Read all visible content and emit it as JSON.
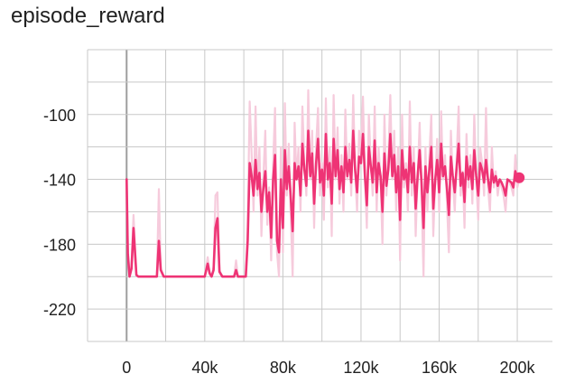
{
  "title": "episode_reward",
  "colors": {
    "raw": "#f6cbdc",
    "smoothed": "#ee3475",
    "grid": "#c8c8c8",
    "zero_line": "#9e9e9e",
    "tick_text": "#212121"
  },
  "chart_data": {
    "type": "line",
    "title": "episode_reward",
    "xlabel": "",
    "ylabel": "",
    "xlim": [
      -20000,
      218000
    ],
    "ylim": [
      -240,
      -60
    ],
    "x_ticks": [
      0,
      40000,
      80000,
      120000,
      160000,
      200000
    ],
    "x_tick_labels": [
      "0",
      "40k",
      "80k",
      "120k",
      "160k",
      "200k"
    ],
    "y_ticks": [
      -100,
      -140,
      -180,
      -220
    ],
    "y_tick_labels": [
      "-100",
      "-140",
      "-180",
      "-220"
    ],
    "grid": true,
    "series": [
      {
        "style": "raw",
        "x": [
          0,
          600,
          1500,
          2500,
          3500,
          5000,
          6000,
          7000,
          8500,
          10000,
          12000,
          14000,
          15500,
          16500,
          17500,
          19000,
          21000,
          25000,
          30000,
          35000,
          40000,
          41500,
          42500,
          43500,
          44500,
          45500,
          46500,
          47500,
          49000,
          51000,
          53000,
          55000,
          56000,
          57000,
          58000,
          59000,
          60000,
          61000,
          62000,
          63000,
          64000,
          65000,
          66000,
          67000,
          68000,
          69000,
          70000,
          71000,
          72000,
          73000,
          74000,
          75000,
          76000,
          77000,
          78000,
          79000,
          80000,
          81000,
          82000,
          83000,
          84000,
          85000,
          86000,
          87000,
          88000,
          89000,
          90000,
          91000,
          92000,
          93000,
          94000,
          95000,
          96000,
          97000,
          98000,
          99000,
          100000,
          101000,
          102000,
          103000,
          104000,
          105000,
          106000,
          107000,
          108000,
          109000,
          110000,
          111000,
          112000,
          113000,
          114000,
          115000,
          116000,
          117000,
          118000,
          119000,
          120000,
          121000,
          122000,
          123000,
          124000,
          125000,
          126000,
          127000,
          128000,
          129000,
          130000,
          131000,
          132000,
          133000,
          134000,
          135000,
          136000,
          137000,
          138000,
          139000,
          140000,
          141000,
          142000,
          143000,
          144000,
          145000,
          146000,
          147000,
          148000,
          149000,
          150000,
          151000,
          152000,
          153000,
          154000,
          155000,
          156000,
          157000,
          158000,
          159000,
          160000,
          161000,
          162000,
          163000,
          164000,
          165000,
          166000,
          167000,
          168000,
          169000,
          170000,
          171000,
          172000,
          173000,
          174000,
          175000,
          176000,
          177000,
          178000,
          179000,
          180000,
          181000,
          182000,
          183000,
          184000,
          185000,
          186000,
          187000,
          188000,
          189000,
          190000,
          191000,
          192000,
          193000,
          194000,
          195000,
          196000,
          197000,
          198000,
          199000,
          200000,
          201000
        ],
        "y": [
          -140,
          -182,
          -200,
          -193,
          -162,
          -199,
          -200,
          -200,
          -200,
          -200,
          -200,
          -200,
          -200,
          -146,
          -195,
          -200,
          -200,
          -200,
          -200,
          -200,
          -200,
          -188,
          -197,
          -200,
          -194,
          -150,
          -148,
          -196,
          -200,
          -200,
          -200,
          -200,
          -190,
          -200,
          -200,
          -200,
          -200,
          -200,
          -170,
          -92,
          -125,
          -160,
          -95,
          -150,
          -120,
          -175,
          -140,
          -110,
          -168,
          -145,
          -190,
          -130,
          -96,
          -185,
          -200,
          -120,
          -185,
          -93,
          -150,
          -118,
          -160,
          -200,
          -105,
          -140,
          -120,
          -160,
          -95,
          -130,
          -150,
          -85,
          -140,
          -110,
          -170,
          -120,
          -96,
          -150,
          -130,
          -165,
          -90,
          -145,
          -120,
          -175,
          -88,
          -140,
          -108,
          -155,
          -125,
          -160,
          -97,
          -140,
          -118,
          -150,
          -88,
          -135,
          -160,
          -110,
          -125,
          -89,
          -140,
          -170,
          -100,
          -130,
          -150,
          -95,
          -160,
          -120,
          -140,
          -180,
          -100,
          -150,
          -128,
          -88,
          -140,
          -110,
          -160,
          -120,
          -190,
          -100,
          -145,
          -130,
          -160,
          -92,
          -150,
          -120,
          -175,
          -138,
          -105,
          -150,
          -200,
          -120,
          -160,
          -125,
          -100,
          -175,
          -140,
          -115,
          -160,
          -98,
          -140,
          -125,
          -155,
          -185,
          -110,
          -140,
          -160,
          -125,
          -95,
          -150,
          -135,
          -170,
          -112,
          -145,
          -125,
          -155,
          -100,
          -140,
          -165,
          -120,
          -130,
          -150,
          -96,
          -145,
          -160,
          -120,
          -145,
          -135,
          -150,
          -140,
          -145,
          -150,
          -160,
          -140,
          -142,
          -145,
          -150,
          -125,
          -145,
          -140
        ]
      },
      {
        "style": "smoothed",
        "x": [
          0,
          600,
          1500,
          2500,
          3500,
          5000,
          6000,
          7000,
          8500,
          10000,
          12000,
          14000,
          15500,
          16500,
          17500,
          19000,
          21000,
          25000,
          30000,
          35000,
          40000,
          41500,
          42500,
          43500,
          44500,
          45500,
          46500,
          47500,
          49000,
          51000,
          53000,
          55000,
          56000,
          57000,
          58000,
          59000,
          60000,
          61000,
          62000,
          63000,
          64000,
          65000,
          66000,
          67000,
          68000,
          69000,
          70000,
          71000,
          72000,
          73000,
          74000,
          75000,
          76000,
          77000,
          78000,
          79000,
          80000,
          81000,
          82000,
          83000,
          84000,
          85000,
          86000,
          87000,
          88000,
          89000,
          90000,
          91000,
          92000,
          93000,
          94000,
          95000,
          96000,
          97000,
          98000,
          99000,
          100000,
          101000,
          102000,
          103000,
          104000,
          105000,
          106000,
          107000,
          108000,
          109000,
          110000,
          111000,
          112000,
          113000,
          114000,
          115000,
          116000,
          117000,
          118000,
          119000,
          120000,
          121000,
          122000,
          123000,
          124000,
          125000,
          126000,
          127000,
          128000,
          129000,
          130000,
          131000,
          132000,
          133000,
          134000,
          135000,
          136000,
          137000,
          138000,
          139000,
          140000,
          141000,
          142000,
          143000,
          144000,
          145000,
          146000,
          147000,
          148000,
          149000,
          150000,
          151000,
          152000,
          153000,
          154000,
          155000,
          156000,
          157000,
          158000,
          159000,
          160000,
          161000,
          162000,
          163000,
          164000,
          165000,
          166000,
          167000,
          168000,
          169000,
          170000,
          171000,
          172000,
          173000,
          174000,
          175000,
          176000,
          177000,
          178000,
          179000,
          180000,
          181000,
          182000,
          183000,
          184000,
          185000,
          186000,
          187000,
          188000,
          189000,
          190000,
          191000,
          192000,
          193000,
          194000,
          195000,
          196000,
          197000,
          198000,
          199000,
          200000,
          201000
        ],
        "y": [
          -140,
          -186,
          -200,
          -195,
          -170,
          -199,
          -200,
          -200,
          -200,
          -200,
          -200,
          -200,
          -200,
          -178,
          -196,
          -200,
          -200,
          -200,
          -200,
          -200,
          -200,
          -192,
          -198,
          -200,
          -196,
          -170,
          -164,
          -197,
          -200,
          -200,
          -200,
          -200,
          -196,
          -200,
          -200,
          -200,
          -200,
          -200,
          -178,
          -130,
          -138,
          -150,
          -128,
          -146,
          -136,
          -160,
          -146,
          -135,
          -160,
          -148,
          -176,
          -140,
          -125,
          -178,
          -185,
          -140,
          -170,
          -122,
          -146,
          -132,
          -150,
          -172,
          -130,
          -140,
          -132,
          -150,
          -118,
          -134,
          -144,
          -110,
          -138,
          -124,
          -155,
          -130,
          -115,
          -142,
          -134,
          -150,
          -112,
          -140,
          -130,
          -155,
          -115,
          -138,
          -122,
          -146,
          -132,
          -148,
          -120,
          -138,
          -128,
          -142,
          -110,
          -134,
          -148,
          -126,
          -130,
          -112,
          -138,
          -156,
          -120,
          -132,
          -142,
          -116,
          -148,
          -130,
          -138,
          -160,
          -124,
          -144,
          -134,
          -112,
          -138,
          -125,
          -148,
          -132,
          -165,
          -122,
          -140,
          -134,
          -148,
          -120,
          -142,
          -130,
          -158,
          -138,
          -122,
          -142,
          -170,
          -132,
          -148,
          -134,
          -120,
          -158,
          -140,
          -128,
          -148,
          -118,
          -138,
          -132,
          -146,
          -162,
          -126,
          -138,
          -148,
          -132,
          -118,
          -144,
          -136,
          -154,
          -126,
          -140,
          -132,
          -146,
          -122,
          -138,
          -150,
          -130,
          -134,
          -142,
          -128,
          -140,
          -148,
          -134,
          -142,
          -138,
          -144,
          -140,
          -142,
          -145,
          -150,
          -140,
          -141,
          -142,
          -145,
          -135,
          -140,
          -139
        ]
      }
    ],
    "end_marker": {
      "x": 201000,
      "y": -139
    }
  }
}
